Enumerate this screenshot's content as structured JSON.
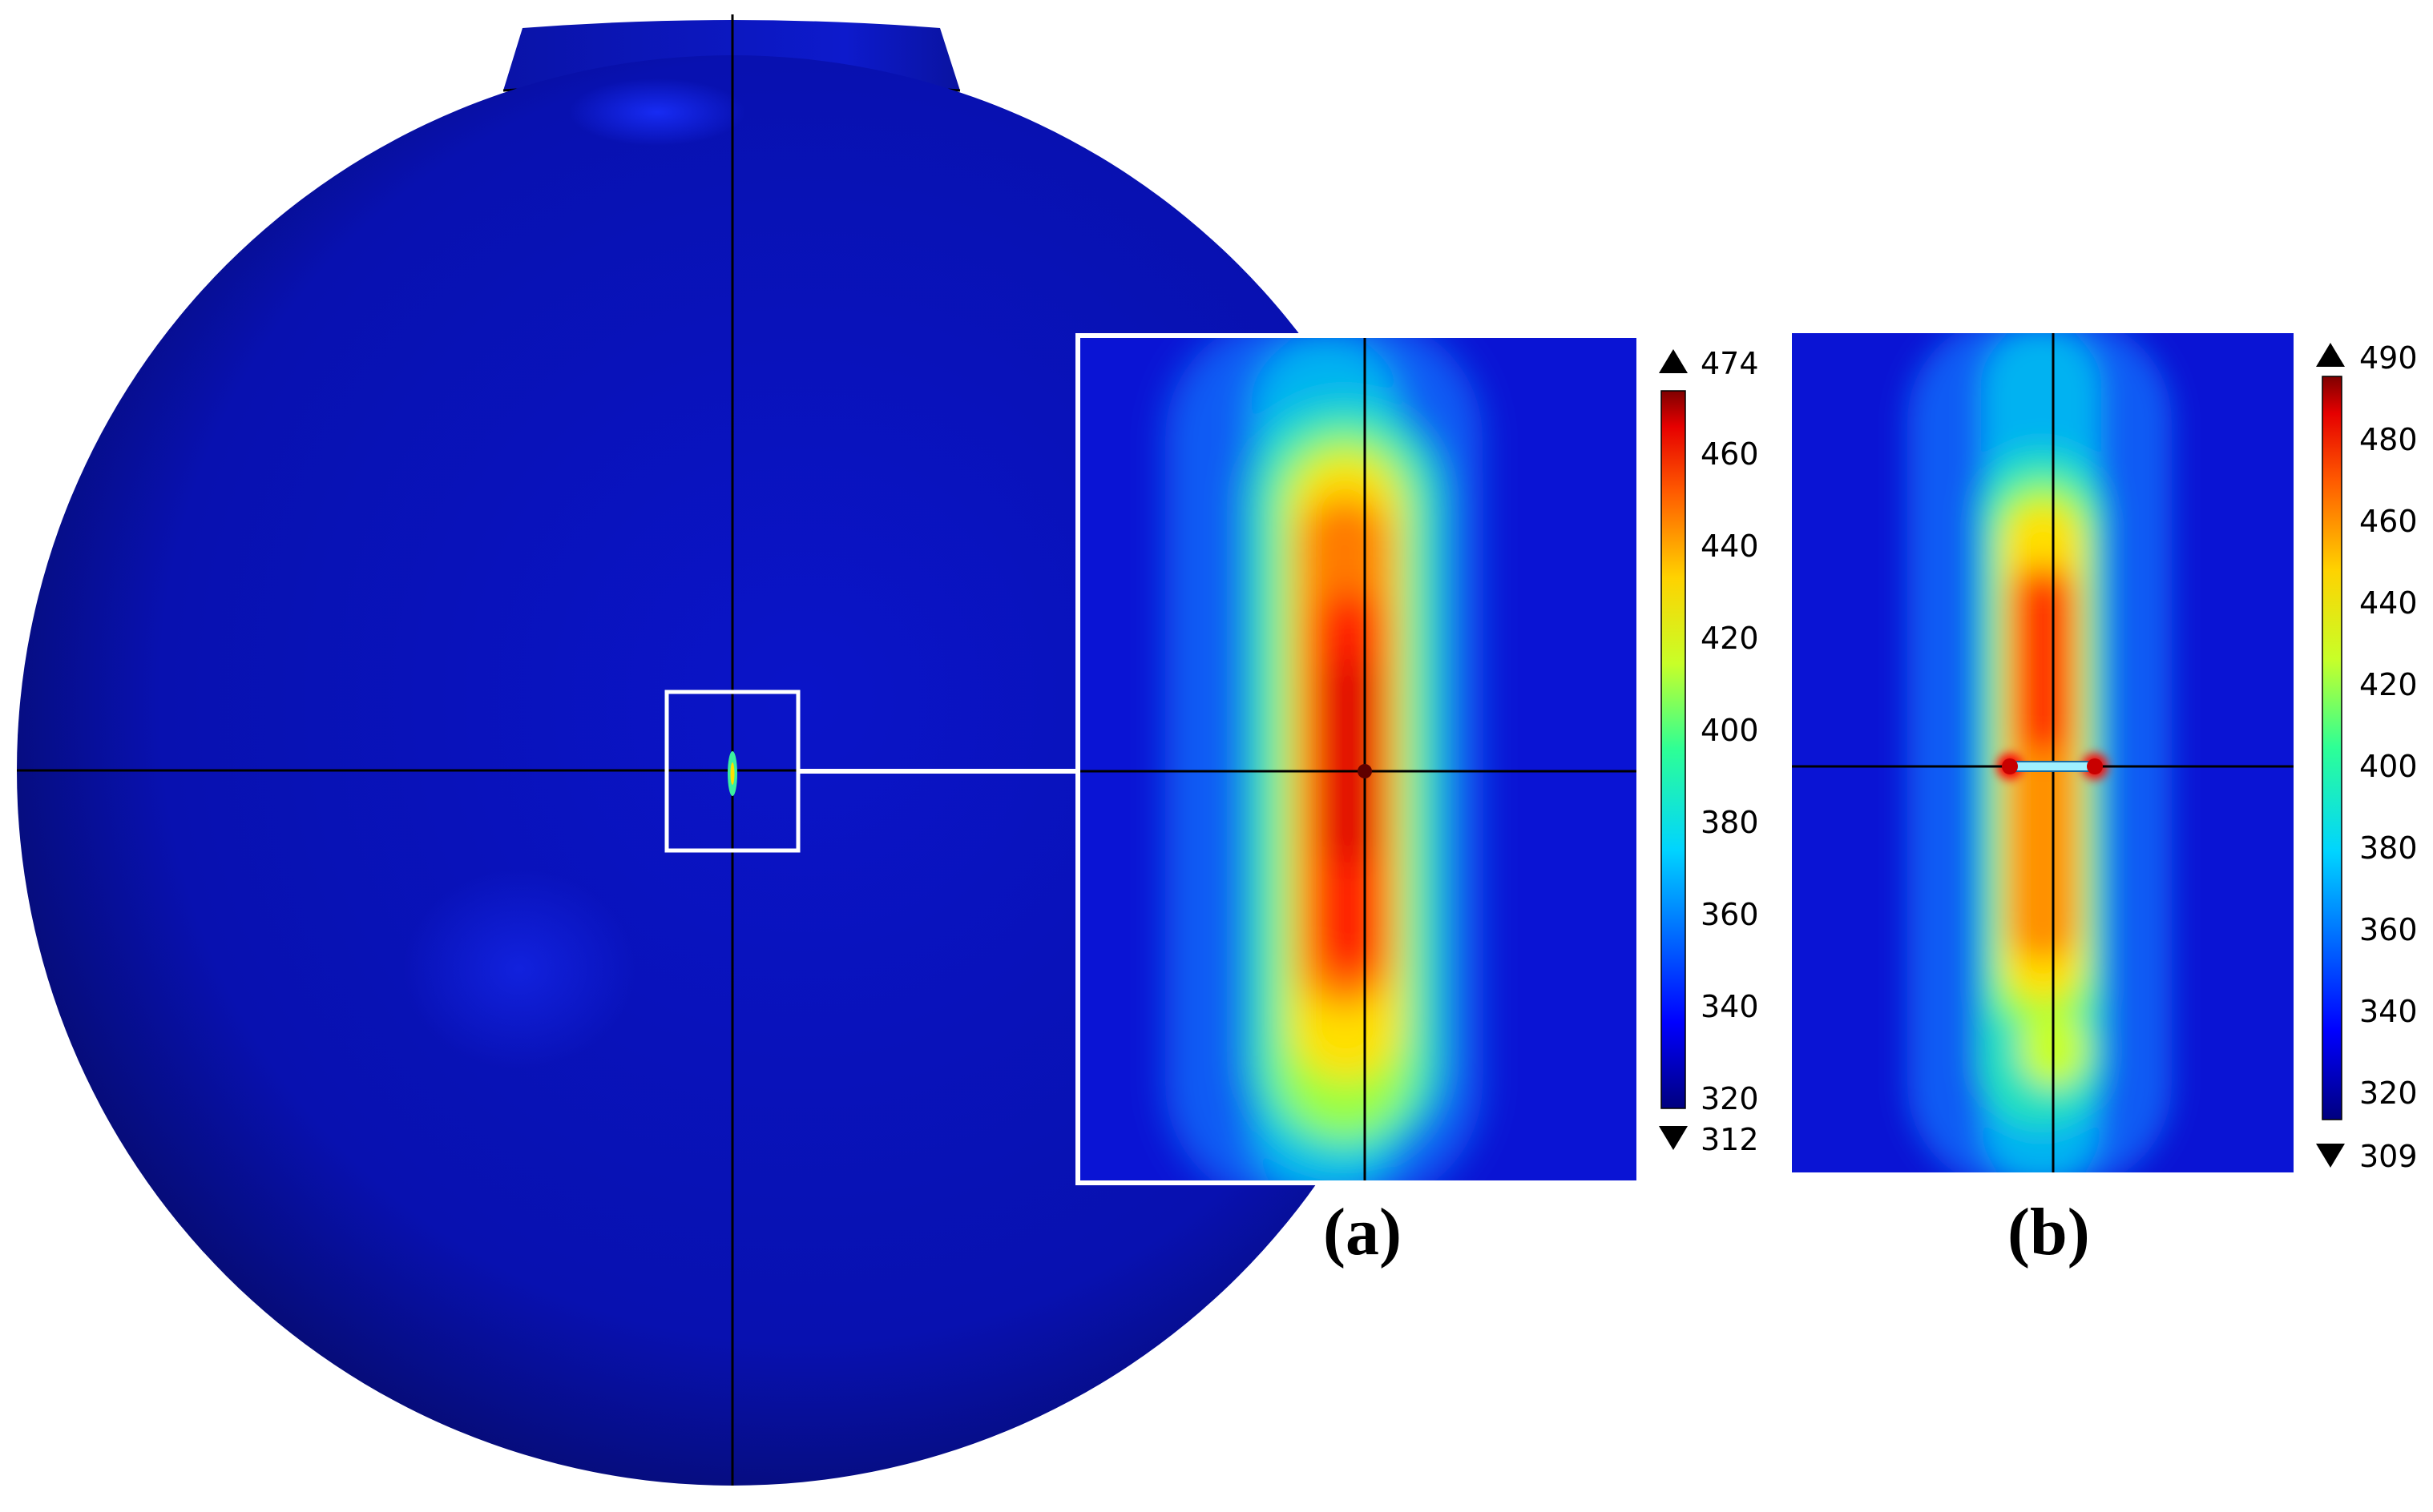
{
  "figure": {
    "panel_a": {
      "label": "(a)",
      "colorbar": {
        "max": "474",
        "min": "312",
        "ticks": [
          "460",
          "440",
          "420",
          "400",
          "380",
          "360",
          "340",
          "320"
        ]
      }
    },
    "panel_b": {
      "label": "(b)",
      "colorbar": {
        "max": "490",
        "min": "309",
        "ticks": [
          "480",
          "460",
          "440",
          "420",
          "400",
          "380",
          "360",
          "340",
          "320"
        ]
      }
    }
  }
}
